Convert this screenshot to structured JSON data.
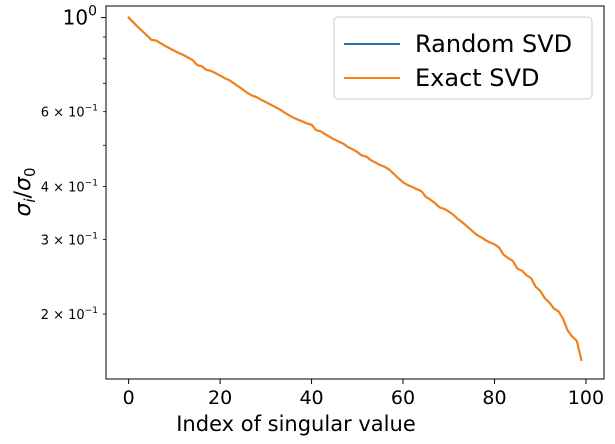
{
  "chart_data": {
    "type": "line",
    "xlabel": "Index of singular value",
    "ylabel": "σᵢ/σ₀",
    "ylabel_parts": {
      "symbol": "σ",
      "numerator_sub": "i",
      "divider": "/",
      "denominator_sub": "0"
    },
    "xlim": [
      -4.95,
      103.95
    ],
    "ylim": [
      0.1406,
      1.065
    ],
    "yscale": "log",
    "grid": false,
    "legend_position": "top-right",
    "x_ticks": [
      {
        "value": 0,
        "label": "0"
      },
      {
        "value": 20,
        "label": "20"
      },
      {
        "value": 40,
        "label": "40"
      },
      {
        "value": 60,
        "label": "60"
      },
      {
        "value": 80,
        "label": "80"
      },
      {
        "value": 100,
        "label": "100"
      }
    ],
    "y_major_ticks": [
      {
        "value": 1.0,
        "base": "10",
        "exponent": "0"
      }
    ],
    "y_minor_ticks": [
      {
        "value": 0.2,
        "mantissa": "2",
        "base": "10",
        "exponent": "−1"
      },
      {
        "value": 0.3,
        "mantissa": "3",
        "base": "10",
        "exponent": "−1"
      },
      {
        "value": 0.4,
        "mantissa": "4",
        "base": "10",
        "exponent": "−1"
      },
      {
        "value": 0.5,
        "mantissa": "",
        "base": "",
        "exponent": ""
      },
      {
        "value": 0.6,
        "mantissa": "6",
        "base": "10",
        "exponent": "−1"
      },
      {
        "value": 0.7,
        "mantissa": "",
        "base": "",
        "exponent": ""
      },
      {
        "value": 0.8,
        "mantissa": "",
        "base": "",
        "exponent": ""
      },
      {
        "value": 0.9,
        "mantissa": "",
        "base": "",
        "exponent": ""
      }
    ],
    "x": [
      0,
      1,
      2,
      3,
      4,
      5,
      6,
      7,
      8,
      9,
      10,
      11,
      12,
      13,
      14,
      15,
      16,
      17,
      18,
      19,
      20,
      21,
      22,
      23,
      24,
      25,
      26,
      27,
      28,
      29,
      30,
      31,
      32,
      33,
      34,
      35,
      36,
      37,
      38,
      39,
      40,
      41,
      42,
      43,
      44,
      45,
      46,
      47,
      48,
      49,
      50,
      51,
      52,
      53,
      54,
      55,
      56,
      57,
      58,
      59,
      60,
      61,
      62,
      63,
      64,
      65,
      66,
      67,
      68,
      69,
      70,
      71,
      72,
      73,
      74,
      75,
      76,
      77,
      78,
      79,
      80,
      81,
      82,
      83,
      84,
      85,
      86,
      87,
      88,
      89,
      90,
      91,
      92,
      93,
      94,
      95,
      96,
      97,
      98,
      99
    ],
    "series": [
      {
        "name": "Random SVD",
        "color": "#1f77b4",
        "values": [
          1.0,
          0.975,
          0.951,
          0.929,
          0.908,
          0.886,
          0.883,
          0.87,
          0.857,
          0.846,
          0.835,
          0.825,
          0.816,
          0.805,
          0.794,
          0.773,
          0.768,
          0.753,
          0.749,
          0.74,
          0.73,
          0.72,
          0.712,
          0.7,
          0.688,
          0.676,
          0.664,
          0.655,
          0.649,
          0.64,
          0.632,
          0.624,
          0.616,
          0.608,
          0.598,
          0.589,
          0.581,
          0.575,
          0.569,
          0.563,
          0.559,
          0.543,
          0.539,
          0.531,
          0.523,
          0.516,
          0.51,
          0.504,
          0.495,
          0.489,
          0.482,
          0.473,
          0.47,
          0.461,
          0.455,
          0.449,
          0.445,
          0.438,
          0.428,
          0.418,
          0.409,
          0.403,
          0.399,
          0.394,
          0.39,
          0.378,
          0.372,
          0.365,
          0.357,
          0.354,
          0.349,
          0.343,
          0.335,
          0.329,
          0.322,
          0.315,
          0.308,
          0.304,
          0.299,
          0.295,
          0.292,
          0.287,
          0.276,
          0.271,
          0.267,
          0.256,
          0.253,
          0.247,
          0.243,
          0.232,
          0.227,
          0.218,
          0.213,
          0.206,
          0.203,
          0.195,
          0.183,
          0.177,
          0.173,
          0.156
        ]
      },
      {
        "name": "Exact SVD",
        "color": "#ff7f0e",
        "values": [
          1.0,
          0.975,
          0.951,
          0.929,
          0.908,
          0.886,
          0.883,
          0.87,
          0.857,
          0.846,
          0.835,
          0.825,
          0.816,
          0.805,
          0.794,
          0.773,
          0.768,
          0.753,
          0.749,
          0.74,
          0.73,
          0.72,
          0.712,
          0.7,
          0.688,
          0.676,
          0.664,
          0.655,
          0.649,
          0.64,
          0.632,
          0.624,
          0.616,
          0.608,
          0.598,
          0.589,
          0.581,
          0.575,
          0.569,
          0.563,
          0.559,
          0.543,
          0.539,
          0.531,
          0.523,
          0.516,
          0.51,
          0.504,
          0.495,
          0.489,
          0.482,
          0.473,
          0.47,
          0.461,
          0.455,
          0.449,
          0.445,
          0.438,
          0.428,
          0.418,
          0.409,
          0.403,
          0.399,
          0.394,
          0.39,
          0.378,
          0.372,
          0.365,
          0.357,
          0.354,
          0.349,
          0.343,
          0.335,
          0.329,
          0.322,
          0.315,
          0.308,
          0.304,
          0.299,
          0.295,
          0.292,
          0.287,
          0.276,
          0.271,
          0.267,
          0.256,
          0.253,
          0.247,
          0.243,
          0.232,
          0.227,
          0.218,
          0.213,
          0.206,
          0.203,
          0.195,
          0.183,
          0.177,
          0.173,
          0.156
        ]
      }
    ]
  }
}
